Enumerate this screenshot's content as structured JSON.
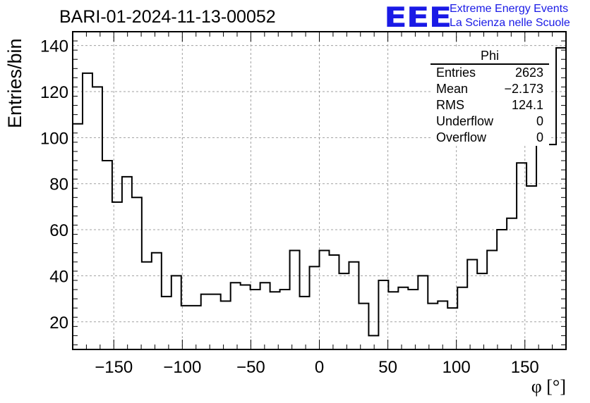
{
  "header": {
    "run_title": "BARI-01-2024-11-13-00052",
    "logo_text": "EEE",
    "logo_line1": "Extreme Energy Events",
    "logo_line2": "La Scienza nelle Scuole",
    "logo_color": "#1a1ae6"
  },
  "stats_box": {
    "title": "Phi",
    "rows": [
      {
        "key": "Entries",
        "value": "2623"
      },
      {
        "key": "Mean",
        "value": "−2.173"
      },
      {
        "key": "RMS",
        "value": "124.1"
      },
      {
        "key": "Underflow",
        "value": "0"
      },
      {
        "key": "Overflow",
        "value": "0"
      }
    ]
  },
  "chart_data": {
    "type": "bar",
    "histogram_style": "step",
    "title": "BARI-01-2024-11-13-00052",
    "xlabel": "φ [°]",
    "ylabel": "Entries/bin",
    "xlim": [
      -180,
      180
    ],
    "ylim": [
      8,
      146
    ],
    "x_ticks": [
      -150,
      -100,
      -50,
      0,
      50,
      100,
      150
    ],
    "x_tick_labels": [
      "−150",
      "−100",
      "−50",
      "0",
      "50",
      "100",
      "150"
    ],
    "y_ticks": [
      20,
      40,
      60,
      80,
      100,
      120,
      140
    ],
    "y_tick_labels": [
      "20",
      "40",
      "60",
      "80",
      "100",
      "120",
      "140"
    ],
    "grid": true,
    "legend": "top-right",
    "bin_edges": [
      -180,
      -172.8,
      -165.6,
      -158.4,
      -151.2,
      -144,
      -136.8,
      -129.6,
      -122.4,
      -115.2,
      -108,
      -100.8,
      -93.6,
      -86.4,
      -79.2,
      -72,
      -64.8,
      -57.6,
      -50.4,
      -43.2,
      -36,
      -28.8,
      -21.6,
      -14.4,
      -7.2,
      0,
      7.2,
      14.4,
      21.6,
      28.8,
      36,
      43.2,
      50.4,
      57.6,
      64.8,
      72,
      79.2,
      86.4,
      93.6,
      100.8,
      108,
      115.2,
      122.4,
      129.6,
      136.8,
      144,
      151.2,
      158.4,
      165.6,
      172.8,
      180
    ],
    "values": [
      106,
      128,
      122,
      90,
      72,
      83,
      74,
      46,
      50,
      31,
      40,
      27,
      27,
      32,
      32,
      29,
      37,
      36,
      34,
      37,
      33,
      34,
      51,
      31,
      44,
      51,
      49,
      41,
      46,
      28,
      14,
      38,
      33,
      35,
      34,
      40,
      28,
      29,
      26,
      35,
      47,
      41,
      51,
      60,
      65,
      89,
      79,
      102,
      97,
      139
    ],
    "line_color": "#000000",
    "grid_color": "#a0a0a0"
  }
}
